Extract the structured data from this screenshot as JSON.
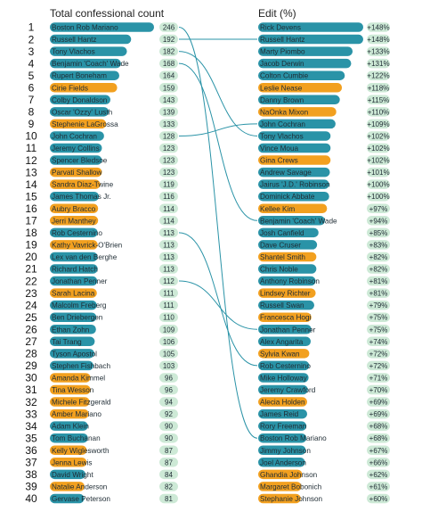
{
  "chart_data": {
    "type": "bar",
    "left_title": "Total confessional count",
    "right_title": "Edit (%)",
    "ranks": [
      1,
      2,
      3,
      4,
      5,
      6,
      7,
      8,
      9,
      10,
      11,
      12,
      13,
      14,
      15,
      16,
      17,
      18,
      19,
      20,
      21,
      22,
      23,
      24,
      25,
      26,
      27,
      28,
      29,
      30,
      31,
      32,
      33,
      34,
      35,
      36,
      37,
      38,
      39,
      40
    ],
    "left": [
      {
        "name": "Boston Rob Mariano",
        "count": 246,
        "female": false
      },
      {
        "name": "Russell Hantz",
        "count": 192,
        "female": false
      },
      {
        "name": "Tony Vlachos",
        "count": 182,
        "female": false
      },
      {
        "name": "Benjamin 'Coach' Wade",
        "count": 168,
        "female": false
      },
      {
        "name": "Rupert Boneham",
        "count": 164,
        "female": false
      },
      {
        "name": "Cirie Fields",
        "count": 159,
        "female": true
      },
      {
        "name": "Colby Donaldson",
        "count": 143,
        "female": false
      },
      {
        "name": "Oscar 'Ozzy' Lusth",
        "count": 139,
        "female": false
      },
      {
        "name": "Stephenie LaGrossa",
        "count": 133,
        "female": true
      },
      {
        "name": "John Cochran",
        "count": 128,
        "female": false
      },
      {
        "name": "Jeremy Collins",
        "count": 123,
        "female": false
      },
      {
        "name": "Spencer Bledsoe",
        "count": 123,
        "female": false
      },
      {
        "name": "Parvati Shallow",
        "count": 123,
        "female": true
      },
      {
        "name": "Sandra Diaz-Twine",
        "count": 119,
        "female": true
      },
      {
        "name": "James Thomas Jr.",
        "count": 116,
        "female": false
      },
      {
        "name": "Aubry Bracco",
        "count": 114,
        "female": true
      },
      {
        "name": "Jerri Manthey",
        "count": 114,
        "female": true
      },
      {
        "name": "Rob Cesternino",
        "count": 113,
        "female": false
      },
      {
        "name": "Kathy Vavrick-O'Brien",
        "count": 113,
        "female": true
      },
      {
        "name": "Lex van den Berghe",
        "count": 113,
        "female": false
      },
      {
        "name": "Richard Hatch",
        "count": 113,
        "female": false
      },
      {
        "name": "Jonathan Penner",
        "count": 112,
        "female": false
      },
      {
        "name": "Sarah Lacina",
        "count": 111,
        "female": true
      },
      {
        "name": "Malcolm Freberg",
        "count": 111,
        "female": false
      },
      {
        "name": "Ben Driebergen",
        "count": 110,
        "female": false
      },
      {
        "name": "Ethan Zohn",
        "count": 109,
        "female": false
      },
      {
        "name": "Tai Trang",
        "count": 106,
        "female": false
      },
      {
        "name": "Tyson Apostol",
        "count": 105,
        "female": false
      },
      {
        "name": "Stephen Fishbach",
        "count": 103,
        "female": false
      },
      {
        "name": "Amanda Kimmel",
        "count": 96,
        "female": true
      },
      {
        "name": "Tina Wesson",
        "count": 96,
        "female": true
      },
      {
        "name": "Michele Fitzgerald",
        "count": 94,
        "female": true
      },
      {
        "name": "Amber Mariano",
        "count": 92,
        "female": true
      },
      {
        "name": "Adam Klein",
        "count": 90,
        "female": false
      },
      {
        "name": "Tom Buchanan",
        "count": 90,
        "female": false
      },
      {
        "name": "Kelly Wiglesworth",
        "count": 87,
        "female": true
      },
      {
        "name": "Jenna Lewis",
        "count": 87,
        "female": true
      },
      {
        "name": "David Wright",
        "count": 84,
        "female": false
      },
      {
        "name": "Natalie Anderson",
        "count": 82,
        "female": true
      },
      {
        "name": "Gervase Peterson",
        "count": 81,
        "female": false
      }
    ],
    "right": [
      {
        "name": "Rick Devens",
        "edit": "+148%",
        "value": 148,
        "female": false
      },
      {
        "name": "Russell Hantz",
        "edit": "+148%",
        "value": 148,
        "female": false
      },
      {
        "name": "Marty Piombo",
        "edit": "+133%",
        "value": 133,
        "female": false
      },
      {
        "name": "Jacob Derwin",
        "edit": "+131%",
        "value": 131,
        "female": false
      },
      {
        "name": "Colton Cumbie",
        "edit": "+122%",
        "value": 122,
        "female": false
      },
      {
        "name": "Leslie Nease",
        "edit": "+118%",
        "value": 118,
        "female": true
      },
      {
        "name": "Danny Brown",
        "edit": "+115%",
        "value": 115,
        "female": false
      },
      {
        "name": "NaOnka Mixon",
        "edit": "+110%",
        "value": 110,
        "female": true
      },
      {
        "name": "John Cochran",
        "edit": "+109%",
        "value": 109,
        "female": false
      },
      {
        "name": "Tony Vlachos",
        "edit": "+102%",
        "value": 102,
        "female": false
      },
      {
        "name": "Vince Moua",
        "edit": "+102%",
        "value": 102,
        "female": false
      },
      {
        "name": "Gina Crews",
        "edit": "+102%",
        "value": 102,
        "female": true
      },
      {
        "name": "Andrew Savage",
        "edit": "+101%",
        "value": 101,
        "female": false
      },
      {
        "name": "Jairus 'J.D.' Robinson",
        "edit": "+100%",
        "value": 100,
        "female": false
      },
      {
        "name": "Dominick Abbate",
        "edit": "+100%",
        "value": 100,
        "female": false
      },
      {
        "name": "Kellee Kim",
        "edit": "+97%",
        "value": 97,
        "female": true
      },
      {
        "name": "Benjamin 'Coach' Wade",
        "edit": "+94%",
        "value": 94,
        "female": false
      },
      {
        "name": "Josh Canfield",
        "edit": "+85%",
        "value": 85,
        "female": false
      },
      {
        "name": "Dave Cruser",
        "edit": "+83%",
        "value": 83,
        "female": false
      },
      {
        "name": "Shantel Smith",
        "edit": "+82%",
        "value": 82,
        "female": true
      },
      {
        "name": "Chris Noble",
        "edit": "+82%",
        "value": 82,
        "female": false
      },
      {
        "name": "Anthony Robinson",
        "edit": "+81%",
        "value": 81,
        "female": false
      },
      {
        "name": "Lindsey Richter",
        "edit": "+81%",
        "value": 81,
        "female": true
      },
      {
        "name": "Russell Swan",
        "edit": "+79%",
        "value": 79,
        "female": false
      },
      {
        "name": "Francesca Hogi",
        "edit": "+75%",
        "value": 75,
        "female": true
      },
      {
        "name": "Jonathan Penner",
        "edit": "+75%",
        "value": 75,
        "female": false
      },
      {
        "name": "Alex Angarita",
        "edit": "+74%",
        "value": 74,
        "female": false
      },
      {
        "name": "Sylvia Kwan",
        "edit": "+72%",
        "value": 72,
        "female": true
      },
      {
        "name": "Rob Cesternino",
        "edit": "+72%",
        "value": 72,
        "female": false
      },
      {
        "name": "Mike Holloway",
        "edit": "+71%",
        "value": 71,
        "female": false
      },
      {
        "name": "Jeremy Crawford",
        "edit": "+70%",
        "value": 70,
        "female": false
      },
      {
        "name": "Alecia Holden",
        "edit": "+69%",
        "value": 69,
        "female": true
      },
      {
        "name": "James Reid",
        "edit": "+69%",
        "value": 69,
        "female": false
      },
      {
        "name": "Rory Freeman",
        "edit": "+68%",
        "value": 68,
        "female": false
      },
      {
        "name": "Boston Rob Mariano",
        "edit": "+68%",
        "value": 68,
        "female": false
      },
      {
        "name": "Jimmy Johnson",
        "edit": "+67%",
        "value": 67,
        "female": false
      },
      {
        "name": "Joel Anderson",
        "edit": "+66%",
        "value": 66,
        "female": false
      },
      {
        "name": "Ghandia Johnson",
        "edit": "+62%",
        "value": 62,
        "female": true
      },
      {
        "name": "Margaret Bobonich",
        "edit": "+61%",
        "value": 61,
        "female": true
      },
      {
        "name": "Stephanie Johnson",
        "edit": "+60%",
        "value": 60,
        "female": true
      }
    ],
    "links": [
      [
        0,
        34
      ],
      [
        1,
        1
      ],
      [
        2,
        9
      ],
      [
        3,
        16
      ],
      [
        9,
        8
      ],
      [
        17,
        28
      ],
      [
        21,
        25
      ]
    ],
    "colors": {
      "male": "#2a93a7",
      "female": "#f2a01f",
      "count_pill": "#cde9d6",
      "pct_pill": "#cde9d6",
      "link": "#2a93a7"
    }
  }
}
